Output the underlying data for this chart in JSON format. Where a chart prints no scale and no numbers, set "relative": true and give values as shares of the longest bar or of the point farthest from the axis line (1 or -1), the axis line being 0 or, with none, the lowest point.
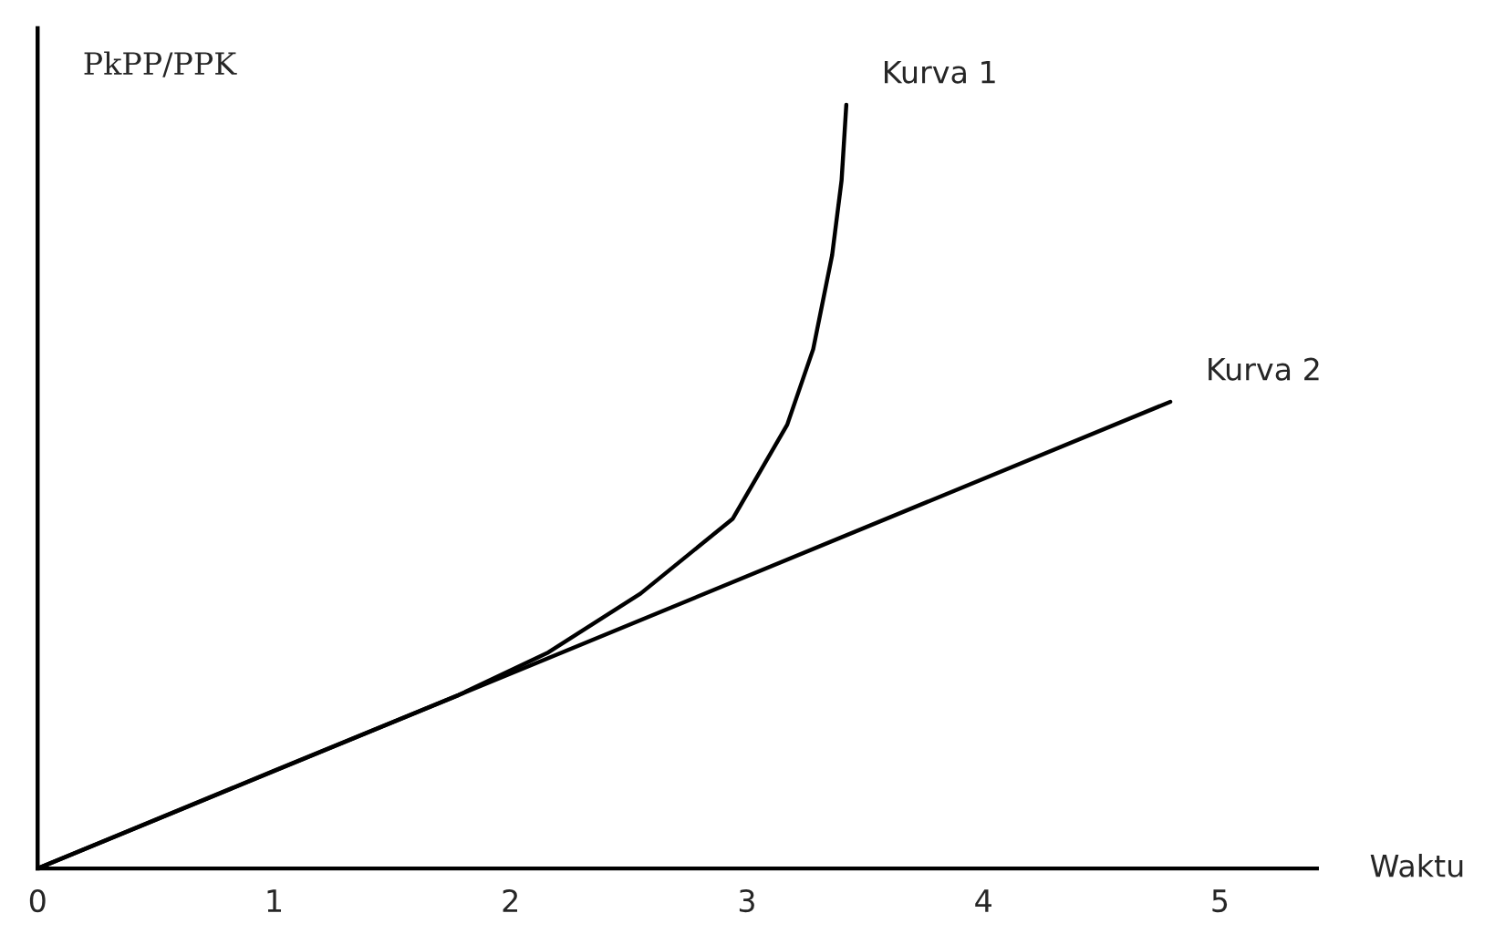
{
  "chart_data": {
    "type": "line",
    "relative": true,
    "xlabel": "Waktu",
    "ylabel": "PkPP/PPK",
    "xlim": [
      0,
      5.41
    ],
    "xticks": [
      0,
      1,
      2,
      3,
      4,
      5
    ],
    "grid": false,
    "legend": false,
    "series": [
      {
        "name": "Kurva 1",
        "color": "#000000",
        "x": [
          0,
          1.0,
          1.78,
          2.16,
          2.55,
          2.94,
          3.17,
          3.28,
          3.36,
          3.4,
          3.42
        ],
        "values": [
          0,
          0.128,
          0.227,
          0.283,
          0.36,
          0.458,
          0.581,
          0.68,
          0.803,
          0.901,
          1.0
        ]
      },
      {
        "name": "Kurva 2",
        "color": "#000000",
        "x": [
          0,
          4.79
        ],
        "values": [
          0,
          0.611
        ]
      }
    ]
  }
}
